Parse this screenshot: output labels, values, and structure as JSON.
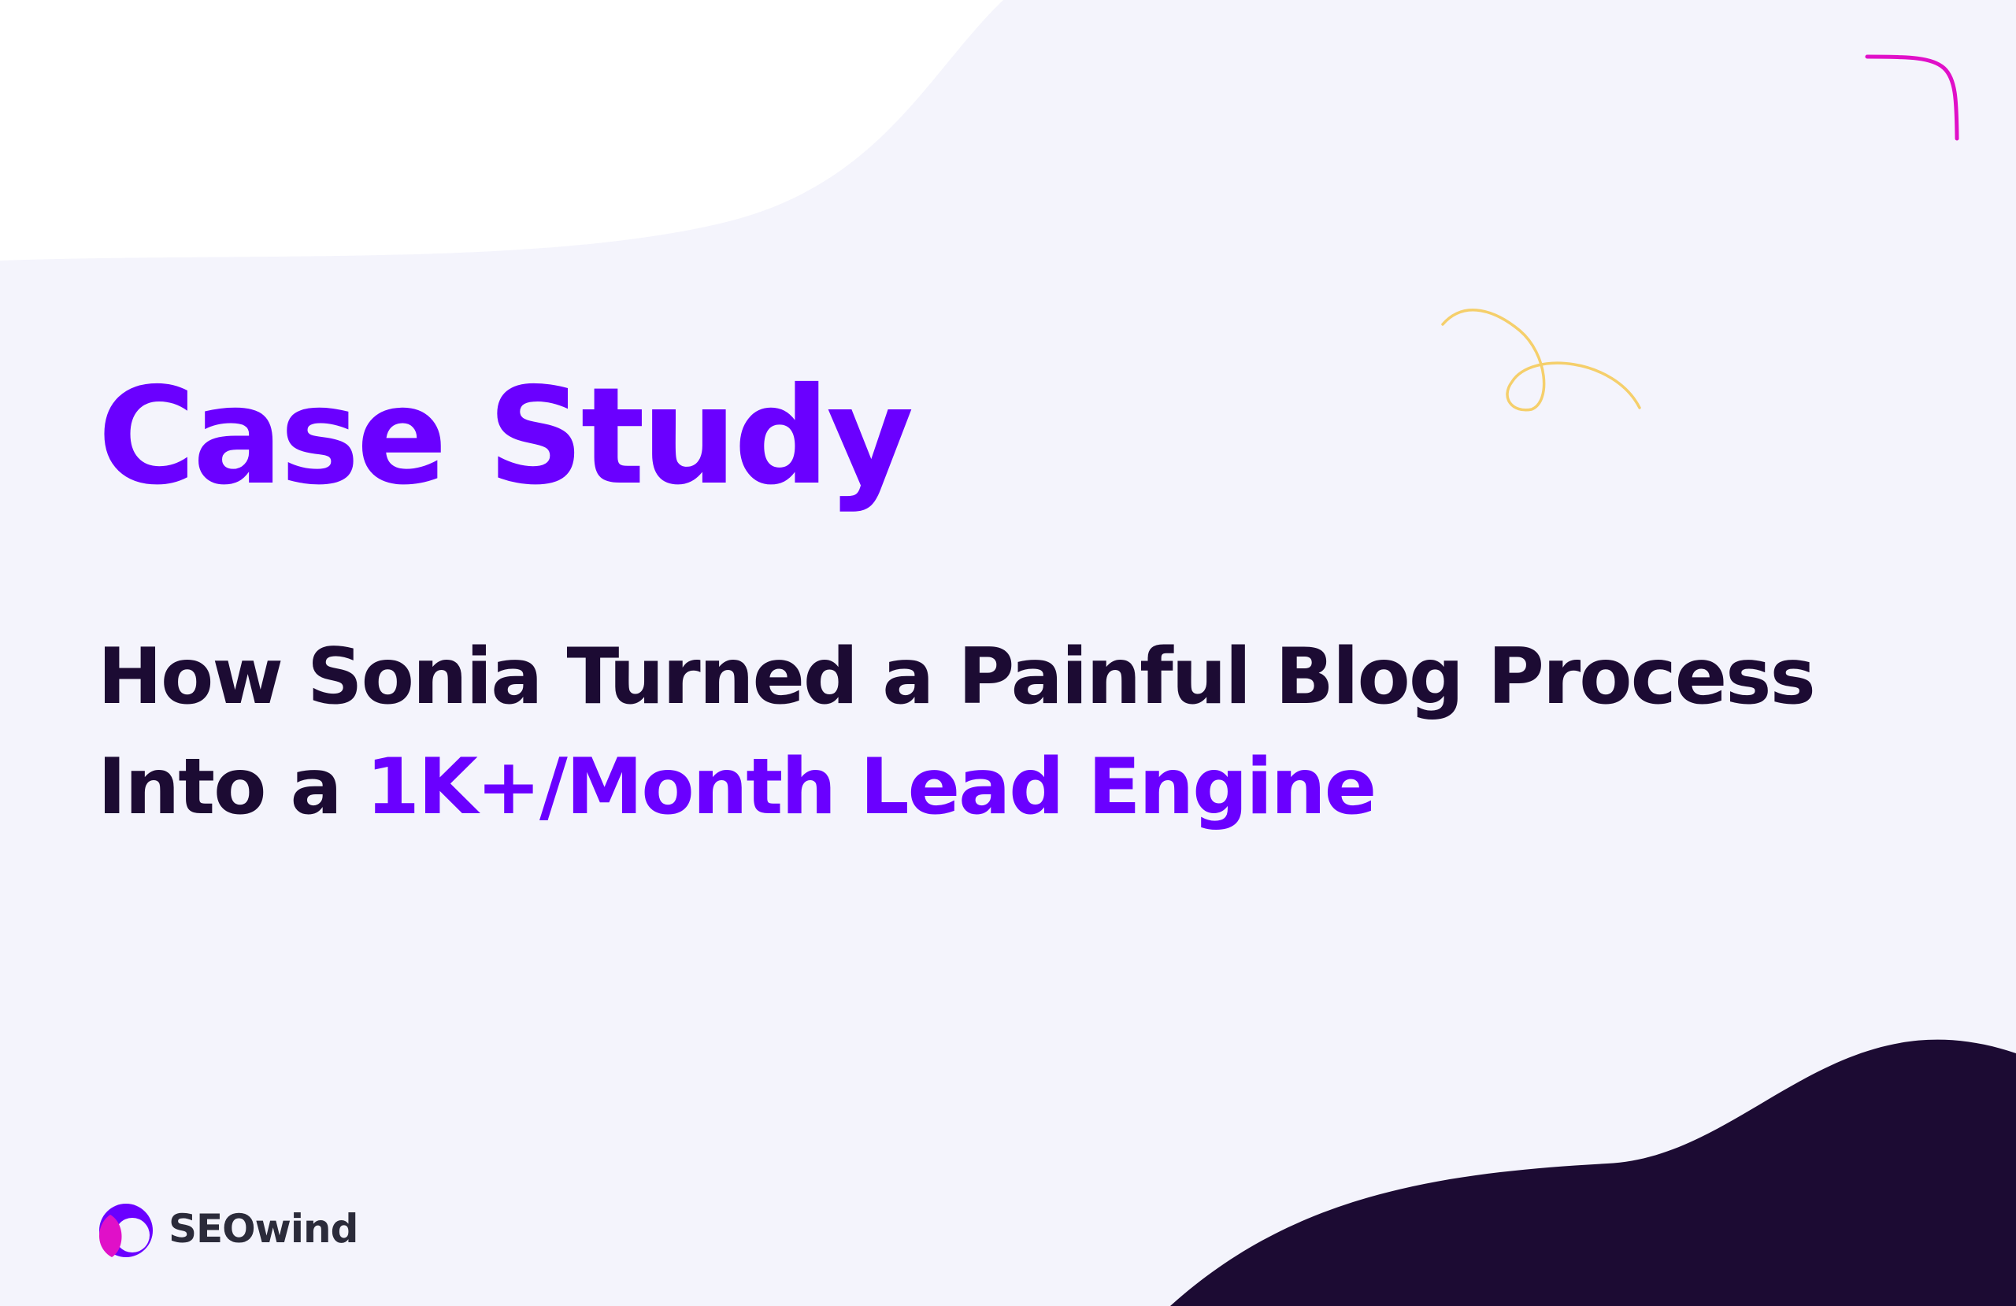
{
  "header": {
    "eyebrow": "Case Study",
    "headline_line1": "How Sonia Turned a Painful Blog Process",
    "headline_line2_prefix": "Into a",
    "headline_line2_highlight": "1K+/Month Lead Engine"
  },
  "footer": {
    "logo_text": "SEOwind"
  }
}
